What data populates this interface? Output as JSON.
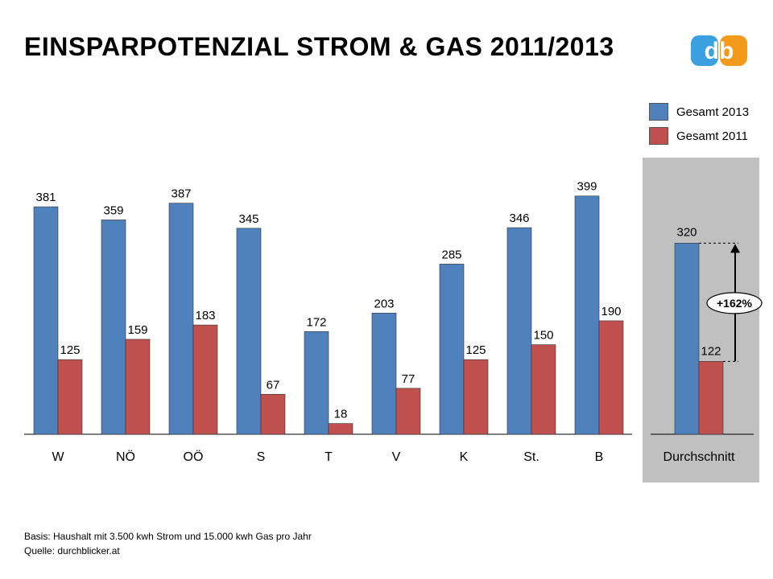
{
  "title": "EINSPARPOTENZIAL STROM & GAS 2011/2013",
  "logo_text": "db",
  "colors": {
    "s2013": "#4f81bd",
    "s2011": "#c0504d",
    "panel": "#c0c0c0",
    "logo_d": "#3aa0e0",
    "logo_b": "#f39a1c"
  },
  "legend": [
    {
      "label": "Gesamt 2013",
      "color": "#4f81bd"
    },
    {
      "label": "Gesamt 2011",
      "color": "#c0504d"
    }
  ],
  "chart_data": {
    "type": "bar",
    "categories": [
      "W",
      "NÖ",
      "OÖ",
      "S",
      "T",
      "V",
      "K",
      "St.",
      "B"
    ],
    "series": [
      {
        "name": "Gesamt 2013",
        "values": [
          381,
          359,
          387,
          345,
          172,
          203,
          285,
          346,
          399
        ]
      },
      {
        "name": "Gesamt 2011",
        "values": [
          125,
          159,
          183,
          67,
          18,
          77,
          125,
          150,
          190
        ]
      }
    ],
    "average": {
      "category": "Durchschnitt",
      "values": [
        320,
        122
      ],
      "change_label": "+162%"
    },
    "grid": false,
    "legend_position": "top-right"
  },
  "footnotes": [
    "Basis: Haushalt mit 3.500 kwh Strom und 15.000 kwh Gas pro Jahr",
    "Quelle: durchblicker.at"
  ]
}
